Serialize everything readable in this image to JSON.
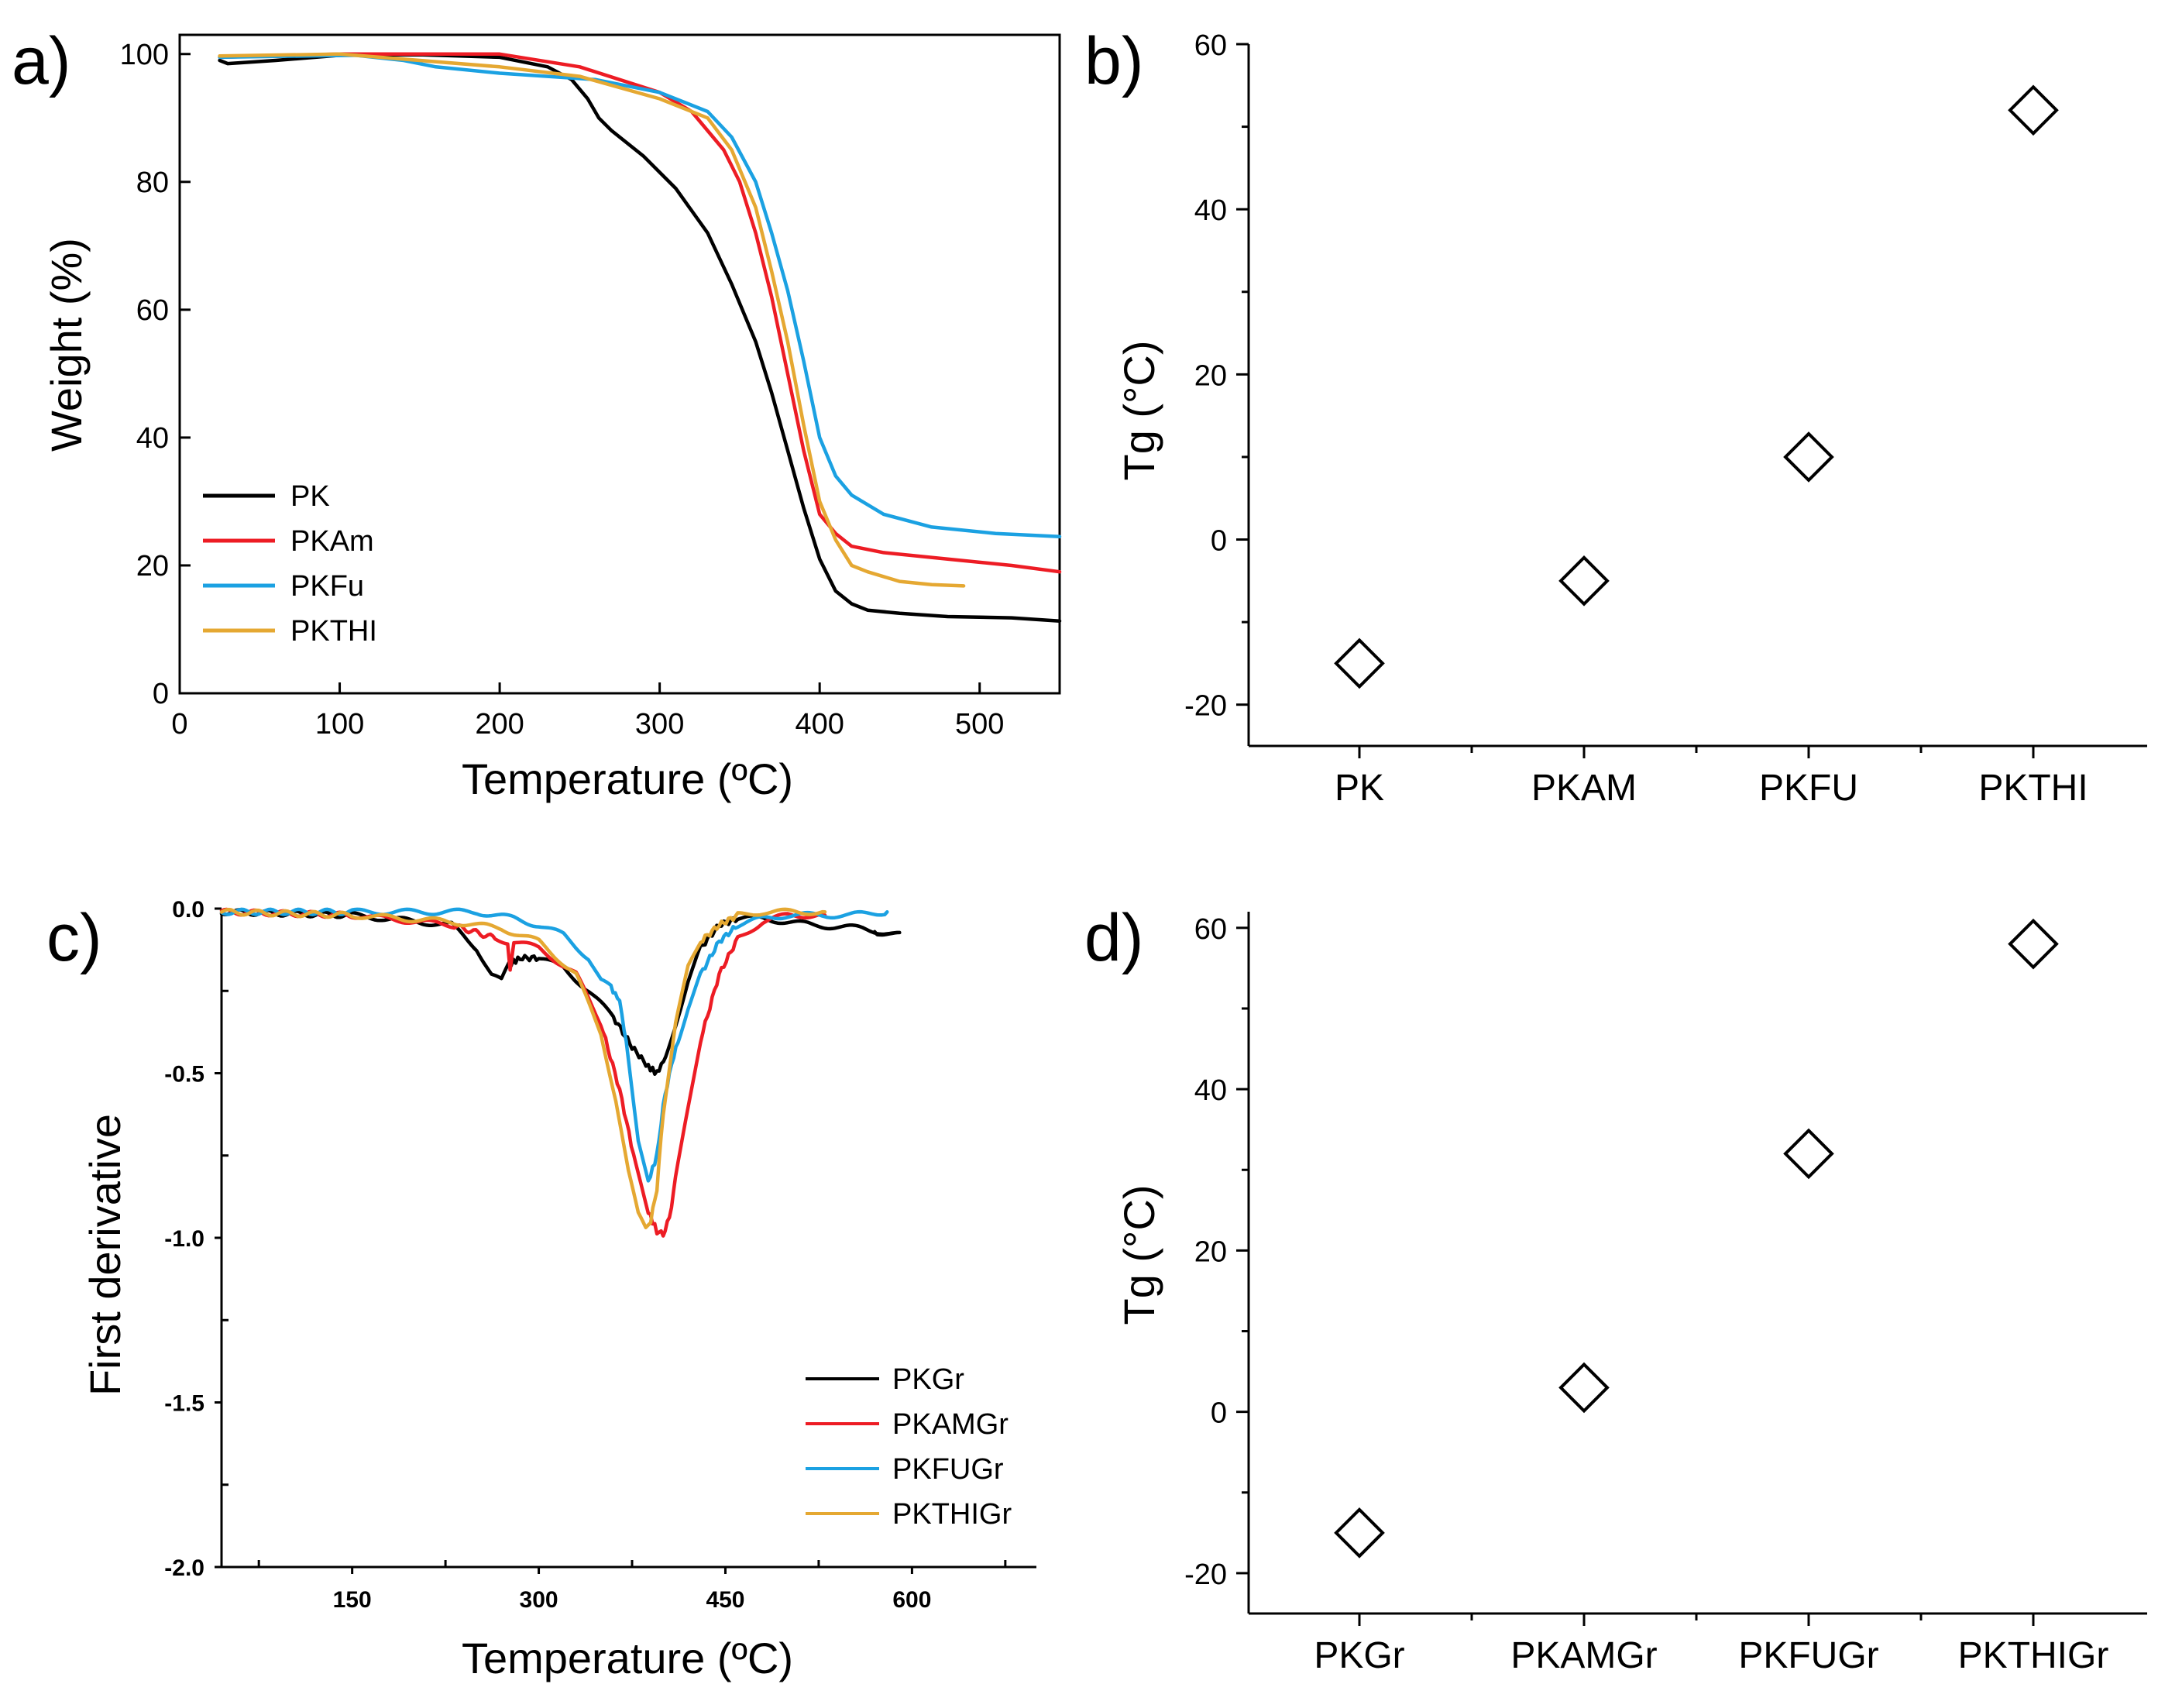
{
  "chart_data": [
    {
      "panel": "a)",
      "type": "line",
      "xlabel": "Temperature  (ºC)",
      "ylabel": "Weight (%)",
      "xlim": [
        0,
        550
      ],
      "ylim": [
        0,
        103
      ],
      "xticks": [
        0,
        100,
        200,
        300,
        400,
        500
      ],
      "yticks": [
        0,
        20,
        40,
        60,
        80,
        100
      ],
      "legend_position": "bottom-left",
      "series": [
        {
          "name": "PK",
          "color": "#000000",
          "x": [
            25,
            30,
            60,
            100,
            150,
            200,
            230,
            245,
            255,
            262,
            270,
            290,
            310,
            330,
            345,
            360,
            370,
            380,
            390,
            400,
            410,
            420,
            430,
            450,
            480,
            520,
            550
          ],
          "y": [
            99,
            98.5,
            99,
            99.8,
            99.9,
            99.5,
            98,
            96,
            93,
            90,
            88,
            84,
            79,
            72,
            64,
            55,
            47,
            38,
            29,
            21,
            16,
            14,
            13,
            12.5,
            12,
            11.8,
            11.3
          ]
        },
        {
          "name": "PKAm",
          "color": "#ed1c24",
          "x": [
            25,
            100,
            200,
            250,
            300,
            320,
            340,
            350,
            360,
            370,
            380,
            390,
            400,
            410,
            420,
            440,
            480,
            520,
            550
          ],
          "y": [
            99.5,
            100,
            100,
            98,
            94,
            91,
            85,
            80,
            72,
            62,
            50,
            38,
            28,
            25,
            23,
            22,
            21,
            20,
            19
          ]
        },
        {
          "name": "PKFu",
          "color": "#1ba1e2",
          "x": [
            25,
            80,
            110,
            140,
            160,
            200,
            260,
            300,
            330,
            345,
            360,
            370,
            380,
            390,
            400,
            410,
            420,
            440,
            470,
            510,
            550
          ],
          "y": [
            99.5,
            99.7,
            99.8,
            99,
            98,
            97,
            96,
            94,
            91,
            87,
            80,
            72,
            63,
            52,
            40,
            34,
            31,
            28,
            26,
            25,
            24.5
          ]
        },
        {
          "name": "PKTHI",
          "color": "#e5a832",
          "x": [
            25,
            100,
            150,
            200,
            250,
            300,
            330,
            345,
            360,
            370,
            380,
            390,
            400,
            410,
            420,
            430,
            450,
            470,
            490
          ],
          "y": [
            99.7,
            100,
            99,
            98,
            96.5,
            93,
            90,
            85,
            76,
            66,
            55,
            42,
            30,
            24,
            20,
            19,
            17.5,
            17,
            16.8
          ]
        }
      ]
    },
    {
      "panel": "b)",
      "type": "scatter",
      "ylabel": "Tg (°C)",
      "categories": [
        "PK",
        "PKAM",
        "PKFU",
        "PKTHI"
      ],
      "values": [
        -15,
        -5,
        10,
        52
      ],
      "ylim": [
        -25,
        60
      ],
      "yticks": [
        -20,
        0,
        20,
        40,
        60
      ]
    },
    {
      "panel": "c)",
      "type": "line",
      "xlabel": "Temperature (ºC)",
      "ylabel": "First derivative",
      "xlim": [
        45,
        700
      ],
      "ylim": [
        -2.0,
        0.0
      ],
      "xticks": [
        150,
        300,
        450,
        600
      ],
      "xtick_labels": [
        "150",
        "300",
        "450",
        "600"
      ],
      "yticks": [
        0.0,
        -0.5,
        -1.0,
        -1.5,
        -2.0
      ],
      "ytick_labels": [
        "0.0",
        "-0.5",
        "-1.0",
        "-1.5",
        "-2.0"
      ],
      "legend_position": "bottom-right",
      "series": [
        {
          "name": "PKGr",
          "color": "#000000",
          "x": [
            45,
            150,
            230,
            250,
            262,
            270,
            276,
            285,
            300,
            320,
            340,
            360,
            375,
            388,
            395,
            402,
            410,
            420,
            430,
            445,
            460,
            480,
            500,
            520,
            560,
            590,
            570
          ],
          "y": [
            -0.01,
            -0.02,
            -0.05,
            -0.12,
            -0.2,
            -0.22,
            -0.17,
            -0.15,
            -0.15,
            -0.18,
            -0.25,
            -0.33,
            -0.42,
            -0.48,
            -0.5,
            -0.45,
            -0.35,
            -0.22,
            -0.12,
            -0.05,
            -0.03,
            -0.03,
            -0.04,
            -0.05,
            -0.06,
            -0.08,
            -0.07
          ]
        },
        {
          "name": "PKAMGr",
          "color": "#ed1c24",
          "x": [
            45,
            150,
            230,
            265,
            275,
            277,
            280,
            300,
            330,
            350,
            365,
            378,
            388,
            395,
            400,
            405,
            410,
            418,
            430,
            445,
            460,
            480,
            500,
            520,
            530
          ],
          "y": [
            -0.01,
            -0.02,
            -0.05,
            -0.09,
            -0.1,
            -0.18,
            -0.1,
            -0.12,
            -0.2,
            -0.35,
            -0.55,
            -0.78,
            -0.92,
            -0.98,
            -0.99,
            -0.94,
            -0.82,
            -0.65,
            -0.4,
            -0.2,
            -0.09,
            -0.04,
            -0.02,
            -0.02,
            -0.02
          ]
        },
        {
          "name": "PKFUGr",
          "color": "#1ba1e2",
          "x": [
            45,
            150,
            250,
            280,
            300,
            320,
            340,
            350,
            358,
            365,
            372,
            380,
            388,
            395,
            400,
            405,
            412,
            420,
            430,
            445,
            460,
            480,
            500,
            550,
            580
          ],
          "y": [
            -0.01,
            -0.01,
            -0.01,
            -0.03,
            -0.05,
            -0.08,
            -0.15,
            -0.22,
            -0.24,
            -0.28,
            -0.45,
            -0.7,
            -0.83,
            -0.75,
            -0.6,
            -0.5,
            -0.4,
            -0.3,
            -0.2,
            -0.1,
            -0.05,
            -0.03,
            -0.02,
            -0.02,
            -0.01
          ]
        },
        {
          "name": "PKTHIGr",
          "color": "#e5a832",
          "x": [
            45,
            150,
            230,
            270,
            300,
            330,
            350,
            362,
            372,
            380,
            386,
            390,
            395,
            400,
            410,
            420,
            430,
            445,
            460,
            480,
            500,
            530
          ],
          "y": [
            -0.01,
            -0.02,
            -0.04,
            -0.06,
            -0.1,
            -0.2,
            -0.38,
            -0.58,
            -0.8,
            -0.93,
            -0.97,
            -0.95,
            -0.85,
            -0.62,
            -0.35,
            -0.18,
            -0.1,
            -0.05,
            -0.02,
            -0.01,
            -0.01,
            -0.01
          ]
        }
      ]
    },
    {
      "panel": "d)",
      "type": "scatter",
      "ylabel": "Tg (°C)",
      "categories": [
        "PKGr",
        "PKAMGr",
        "PKFUGr",
        "PKTHIGr"
      ],
      "values": [
        -15,
        3,
        32,
        58
      ],
      "ylim": [
        -25,
        62
      ],
      "yticks": [
        -20,
        0,
        20,
        40,
        60
      ]
    }
  ]
}
